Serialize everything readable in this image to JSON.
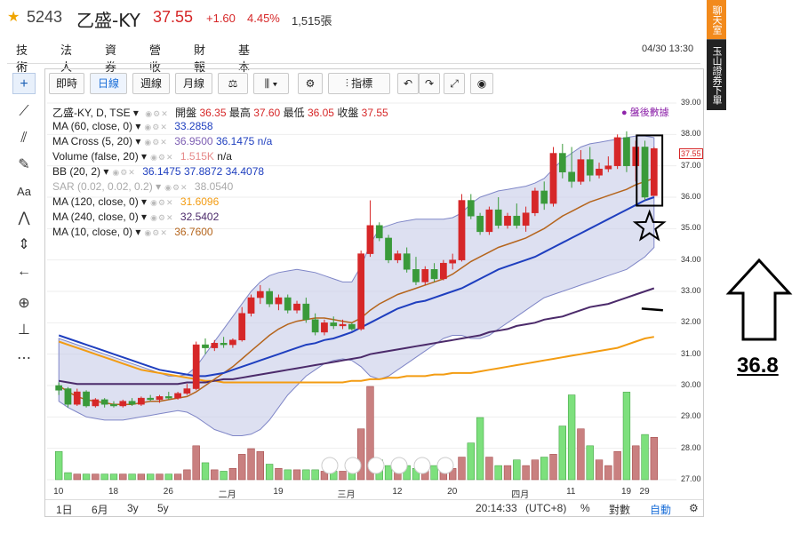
{
  "header": {
    "code": "5243",
    "name": "乙盛-KY",
    "price": "37.55",
    "change": "+1.60",
    "change_pct": "4.45%",
    "volume": "1,515張",
    "star_icon": "star-icon"
  },
  "tabs": [
    "技術",
    "法人",
    "資券",
    "營收",
    "財報",
    "基本"
  ],
  "datetime": "04/30 13:30",
  "toolbar": {
    "realtime": "即時",
    "daily": "日線",
    "weekly": "週線",
    "monthly": "月線",
    "indicators": "指標"
  },
  "legend": {
    "main": "乙盛-KY, D, TSE",
    "open_label": "開盤",
    "open": "36.35",
    "high_label": "最高",
    "high": "37.60",
    "low_label": "最低",
    "low": "36.05",
    "close_label": "收盤",
    "close": "37.55",
    "ma60_label": "MA (60, close, 0)",
    "ma60": "33.2858",
    "macross_label": "MA Cross (5, 20)",
    "macross_a": "36.9500",
    "macross_b": "36.1475",
    "macross_c": "n/a",
    "volume_label": "Volume (false, 20)",
    "volume": "1.515K",
    "volume_b": "n/a",
    "bb_label": "BB (20, 2)",
    "bb_mid": "36.1475",
    "bb_up": "37.8872",
    "bb_low": "34.4078",
    "sar_label": "SAR (0.02, 0.02, 0.2)",
    "sar": "38.0540",
    "ma120_label": "MA (120, close, 0)",
    "ma120": "31.6096",
    "ma240_label": "MA (240, close, 0)",
    "ma240": "32.5402",
    "ma10_label": "MA (10, close, 0)",
    "ma10": "36.7600"
  },
  "postmarket": "盤後數據",
  "y_ticks": [
    "39.00",
    "38.00",
    "37.00",
    "36.00",
    "35.00",
    "34.00",
    "33.00",
    "32.00",
    "31.00",
    "30.00",
    "29.00",
    "28.00",
    "27.00"
  ],
  "last_price_tag": "37.55",
  "x_ticks": [
    "10",
    "18",
    "26",
    "二月",
    "19",
    "三月",
    "12",
    "20",
    "四月",
    "11",
    "19",
    "29"
  ],
  "bottom": {
    "r1": "1日",
    "r2": "6月",
    "r3": "3y",
    "r4": "5y",
    "time": "20:14:33",
    "tz": "(UTC+8)",
    "pct": "%",
    "log": "對數",
    "auto": "自動"
  },
  "side": {
    "chat": "聊天室",
    "ad": "玉山證券下單"
  },
  "annotation_value": "36.8",
  "colors": {
    "up": "#d62728",
    "down": "#3a9a3a",
    "ma_blue": "#1f3fbf",
    "ma_brown": "#b5651d",
    "ma_purple": "#4b2a6a",
    "ma_orange": "#f39c12",
    "bb_fill": "#c7cbe8",
    "accent": "#1a6ed8"
  },
  "chart_data": {
    "type": "candlestick",
    "ylim": [
      27,
      39
    ],
    "candles": [
      {
        "o": 30.0,
        "h": 30.1,
        "l": 29.7,
        "c": 29.85
      },
      {
        "o": 29.9,
        "h": 29.95,
        "l": 29.3,
        "c": 29.4
      },
      {
        "o": 29.4,
        "h": 29.9,
        "l": 29.35,
        "c": 29.8
      },
      {
        "o": 29.8,
        "h": 29.85,
        "l": 29.3,
        "c": 29.35
      },
      {
        "o": 29.35,
        "h": 29.6,
        "l": 29.3,
        "c": 29.55
      },
      {
        "o": 29.55,
        "h": 29.6,
        "l": 29.3,
        "c": 29.4
      },
      {
        "o": 29.4,
        "h": 29.5,
        "l": 29.3,
        "c": 29.35
      },
      {
        "o": 29.35,
        "h": 29.55,
        "l": 29.3,
        "c": 29.5
      },
      {
        "o": 29.5,
        "h": 29.6,
        "l": 29.35,
        "c": 29.4
      },
      {
        "o": 29.4,
        "h": 29.65,
        "l": 29.35,
        "c": 29.6
      },
      {
        "o": 29.6,
        "h": 29.7,
        "l": 29.5,
        "c": 29.55
      },
      {
        "o": 29.55,
        "h": 29.7,
        "l": 29.45,
        "c": 29.65
      },
      {
        "o": 29.65,
        "h": 29.8,
        "l": 29.55,
        "c": 29.6
      },
      {
        "o": 29.6,
        "h": 29.8,
        "l": 29.55,
        "c": 29.75
      },
      {
        "o": 29.75,
        "h": 30.05,
        "l": 29.7,
        "c": 29.9
      },
      {
        "o": 29.9,
        "h": 31.4,
        "l": 29.85,
        "c": 31.3
      },
      {
        "o": 31.3,
        "h": 31.5,
        "l": 31.0,
        "c": 31.2
      },
      {
        "o": 31.2,
        "h": 31.45,
        "l": 31.1,
        "c": 31.35
      },
      {
        "o": 31.35,
        "h": 31.55,
        "l": 31.2,
        "c": 31.3
      },
      {
        "o": 31.3,
        "h": 31.5,
        "l": 31.2,
        "c": 31.45
      },
      {
        "o": 31.45,
        "h": 32.5,
        "l": 31.4,
        "c": 32.3
      },
      {
        "o": 32.3,
        "h": 32.9,
        "l": 32.2,
        "c": 32.8
      },
      {
        "o": 32.8,
        "h": 33.2,
        "l": 32.6,
        "c": 33.0
      },
      {
        "o": 33.0,
        "h": 33.1,
        "l": 32.5,
        "c": 32.6
      },
      {
        "o": 32.6,
        "h": 32.9,
        "l": 32.4,
        "c": 32.8
      },
      {
        "o": 32.8,
        "h": 32.9,
        "l": 32.3,
        "c": 32.4
      },
      {
        "o": 32.4,
        "h": 32.7,
        "l": 32.3,
        "c": 32.6
      },
      {
        "o": 32.6,
        "h": 32.8,
        "l": 32.0,
        "c": 32.1
      },
      {
        "o": 32.1,
        "h": 32.3,
        "l": 31.6,
        "c": 31.7
      },
      {
        "o": 31.7,
        "h": 32.1,
        "l": 31.6,
        "c": 32.0
      },
      {
        "o": 32.0,
        "h": 32.2,
        "l": 31.8,
        "c": 31.9
      },
      {
        "o": 31.9,
        "h": 32.1,
        "l": 31.8,
        "c": 31.95
      },
      {
        "o": 31.95,
        "h": 32.0,
        "l": 31.75,
        "c": 31.8
      },
      {
        "o": 31.8,
        "h": 34.3,
        "l": 31.75,
        "c": 34.2
      },
      {
        "o": 34.2,
        "h": 35.9,
        "l": 34.1,
        "c": 35.1
      },
      {
        "o": 35.1,
        "h": 35.2,
        "l": 34.6,
        "c": 34.7
      },
      {
        "o": 34.7,
        "h": 34.8,
        "l": 33.9,
        "c": 34.0
      },
      {
        "o": 34.0,
        "h": 34.3,
        "l": 33.9,
        "c": 34.2
      },
      {
        "o": 34.2,
        "h": 34.4,
        "l": 33.6,
        "c": 33.7
      },
      {
        "o": 33.7,
        "h": 34.1,
        "l": 33.2,
        "c": 33.3
      },
      {
        "o": 33.3,
        "h": 33.8,
        "l": 33.2,
        "c": 33.7
      },
      {
        "o": 33.7,
        "h": 33.9,
        "l": 33.3,
        "c": 33.4
      },
      {
        "o": 33.4,
        "h": 34.0,
        "l": 33.35,
        "c": 33.9
      },
      {
        "o": 33.9,
        "h": 34.2,
        "l": 33.7,
        "c": 34.0
      },
      {
        "o": 34.0,
        "h": 36.1,
        "l": 33.95,
        "c": 35.9
      },
      {
        "o": 35.9,
        "h": 36.1,
        "l": 35.3,
        "c": 35.4
      },
      {
        "o": 35.4,
        "h": 35.5,
        "l": 34.8,
        "c": 34.9
      },
      {
        "o": 34.9,
        "h": 35.7,
        "l": 34.8,
        "c": 35.6
      },
      {
        "o": 35.6,
        "h": 36.0,
        "l": 35.0,
        "c": 35.1
      },
      {
        "o": 35.1,
        "h": 35.5,
        "l": 35.0,
        "c": 35.4
      },
      {
        "o": 35.4,
        "h": 35.8,
        "l": 35.0,
        "c": 35.1
      },
      {
        "o": 35.1,
        "h": 35.7,
        "l": 34.9,
        "c": 35.5
      },
      {
        "o": 35.5,
        "h": 36.3,
        "l": 35.4,
        "c": 36.2
      },
      {
        "o": 36.2,
        "h": 36.5,
        "l": 35.6,
        "c": 35.8
      },
      {
        "o": 35.8,
        "h": 37.6,
        "l": 35.7,
        "c": 37.4
      },
      {
        "o": 37.4,
        "h": 37.7,
        "l": 36.6,
        "c": 36.8
      },
      {
        "o": 36.8,
        "h": 37.6,
        "l": 36.3,
        "c": 36.5
      },
      {
        "o": 36.5,
        "h": 37.5,
        "l": 36.4,
        "c": 37.2
      },
      {
        "o": 37.2,
        "h": 37.6,
        "l": 36.5,
        "c": 36.7
      },
      {
        "o": 36.7,
        "h": 37.1,
        "l": 36.6,
        "c": 36.9
      },
      {
        "o": 36.9,
        "h": 37.3,
        "l": 36.8,
        "c": 37.0
      },
      {
        "o": 37.0,
        "h": 38.0,
        "l": 36.9,
        "c": 37.9
      },
      {
        "o": 37.9,
        "h": 38.1,
        "l": 36.8,
        "c": 37.0
      },
      {
        "o": 37.0,
        "h": 37.8,
        "l": 36.5,
        "c": 37.6
      },
      {
        "o": 37.6,
        "h": 37.8,
        "l": 35.9,
        "c": 36.0
      },
      {
        "o": 36.05,
        "h": 37.6,
        "l": 36.05,
        "c": 37.55
      }
    ],
    "volumes": [
      1.0,
      0.25,
      0.2,
      0.2,
      0.2,
      0.2,
      0.2,
      0.2,
      0.2,
      0.2,
      0.2,
      0.2,
      0.2,
      0.2,
      0.35,
      1.2,
      0.6,
      0.35,
      0.3,
      0.4,
      0.9,
      1.1,
      1.0,
      0.55,
      0.4,
      0.35,
      0.35,
      0.35,
      0.35,
      0.3,
      0.3,
      0.3,
      0.3,
      1.8,
      3.3,
      0.7,
      0.5,
      0.4,
      0.5,
      0.4,
      0.35,
      0.5,
      0.35,
      0.4,
      0.8,
      1.3,
      2.2,
      0.8,
      0.5,
      0.5,
      0.7,
      0.5,
      0.7,
      0.8,
      0.9,
      1.9,
      3.0,
      1.8,
      1.2,
      0.7,
      0.5,
      1.0,
      3.1,
      1.2,
      1.6,
      1.5
    ],
    "ma_blue": [
      31.6,
      31.5,
      31.4,
      31.3,
      31.2,
      31.1,
      31.0,
      30.9,
      30.8,
      30.7,
      30.6,
      30.5,
      30.45,
      30.4,
      30.35,
      30.3,
      30.3,
      30.35,
      30.4,
      30.5,
      30.6,
      30.7,
      30.8,
      30.9,
      31.0,
      31.1,
      31.2,
      31.3,
      31.35,
      31.45,
      31.5,
      31.6,
      31.7,
      31.85,
      32.0,
      32.15,
      32.3,
      32.45,
      32.55,
      32.65,
      32.7,
      32.8,
      32.9,
      33.0,
      33.1,
      33.25,
      33.4,
      33.55,
      33.7,
      33.8,
      33.9,
      34.0,
      34.1,
      34.25,
      34.4,
      34.55,
      34.7,
      34.85,
      35.0,
      35.15,
      35.3,
      35.45,
      35.6,
      35.75,
      35.9,
      36.0
    ],
    "ma_brown": [
      30.0,
      29.8,
      29.65,
      29.55,
      29.5,
      29.45,
      29.4,
      29.4,
      29.4,
      29.45,
      29.5,
      29.5,
      29.55,
      29.6,
      29.65,
      29.8,
      30.0,
      30.2,
      30.4,
      30.6,
      30.85,
      31.1,
      31.35,
      31.6,
      31.8,
      31.95,
      32.05,
      32.1,
      32.15,
      32.15,
      32.1,
      32.05,
      32.0,
      32.15,
      32.4,
      32.6,
      32.75,
      32.9,
      33.0,
      33.1,
      33.2,
      33.3,
      33.4,
      33.55,
      33.75,
      33.95,
      34.1,
      34.25,
      34.4,
      34.5,
      34.6,
      34.7,
      34.85,
      35.0,
      35.2,
      35.4,
      35.55,
      35.7,
      35.85,
      35.95,
      36.05,
      36.15,
      36.25,
      36.4,
      36.5,
      36.6
    ],
    "ma_purple": [
      30.15,
      30.1,
      30.05,
      30.05,
      30.05,
      30.05,
      30.05,
      30.05,
      30.05,
      30.05,
      30.05,
      30.05,
      30.05,
      30.05,
      30.1,
      30.1,
      30.1,
      30.15,
      30.2,
      30.2,
      30.25,
      30.3,
      30.35,
      30.4,
      30.45,
      30.5,
      30.55,
      30.6,
      30.65,
      30.7,
      30.75,
      30.8,
      30.85,
      30.9,
      31.0,
      31.05,
      31.1,
      31.15,
      31.2,
      31.25,
      31.3,
      31.35,
      31.4,
      31.45,
      31.5,
      31.55,
      31.6,
      31.7,
      31.75,
      31.8,
      31.9,
      31.95,
      32.0,
      32.1,
      32.15,
      32.2,
      32.3,
      32.4,
      32.5,
      32.55,
      32.6,
      32.7,
      32.8,
      32.9,
      33.0,
      33.1
    ],
    "ma_orange": [
      31.4,
      31.3,
      31.2,
      31.1,
      31.0,
      30.9,
      30.8,
      30.7,
      30.6,
      30.5,
      30.45,
      30.4,
      30.35,
      30.3,
      30.25,
      30.2,
      30.15,
      30.15,
      30.1,
      30.1,
      30.1,
      30.1,
      30.1,
      30.1,
      30.1,
      30.1,
      30.1,
      30.1,
      30.1,
      30.1,
      30.1,
      30.1,
      30.15,
      30.15,
      30.2,
      30.2,
      30.25,
      30.25,
      30.3,
      30.3,
      30.3,
      30.35,
      30.35,
      30.4,
      30.4,
      30.4,
      30.45,
      30.5,
      30.55,
      30.6,
      30.65,
      30.7,
      30.75,
      30.8,
      30.85,
      30.9,
      30.95,
      31.0,
      31.05,
      31.1,
      31.15,
      31.2,
      31.3,
      31.4,
      31.5,
      31.55
    ],
    "bb_up": [
      31.5,
      31.4,
      31.3,
      31.2,
      31.1,
      31.0,
      30.9,
      30.8,
      30.7,
      30.6,
      30.5,
      30.4,
      30.3,
      30.3,
      30.35,
      30.6,
      31.0,
      31.4,
      31.8,
      32.2,
      32.6,
      33.0,
      33.3,
      33.5,
      33.6,
      33.65,
      33.7,
      33.65,
      33.6,
      33.5,
      33.4,
      33.3,
      33.3,
      33.8,
      34.5,
      35.0,
      35.1,
      35.2,
      35.25,
      35.3,
      35.3,
      35.3,
      35.3,
      35.35,
      35.5,
      35.8,
      36.0,
      36.1,
      36.2,
      36.25,
      36.3,
      36.35,
      36.45,
      36.6,
      36.9,
      37.2,
      37.4,
      37.6,
      37.7,
      37.75,
      37.8,
      37.85,
      37.9,
      37.95,
      37.95,
      37.9
    ],
    "bb_low": [
      29.5,
      29.3,
      29.15,
      29.0,
      28.95,
      28.9,
      28.9,
      28.9,
      28.95,
      29.0,
      29.05,
      29.1,
      29.15,
      29.2,
      29.15,
      29.0,
      28.8,
      28.6,
      28.5,
      28.4,
      28.4,
      28.45,
      28.6,
      28.9,
      29.3,
      29.7,
      30.0,
      30.3,
      30.5,
      30.7,
      30.8,
      30.85,
      30.8,
      30.6,
      30.3,
      30.2,
      30.3,
      30.5,
      30.7,
      30.9,
      31.1,
      31.3,
      31.5,
      31.6,
      31.6,
      31.5,
      31.5,
      31.6,
      31.8,
      32.0,
      32.2,
      32.4,
      32.6,
      32.8,
      32.9,
      33.0,
      33.1,
      33.2,
      33.3,
      33.4,
      33.5,
      33.6,
      33.7,
      33.9,
      34.1,
      34.4
    ]
  }
}
